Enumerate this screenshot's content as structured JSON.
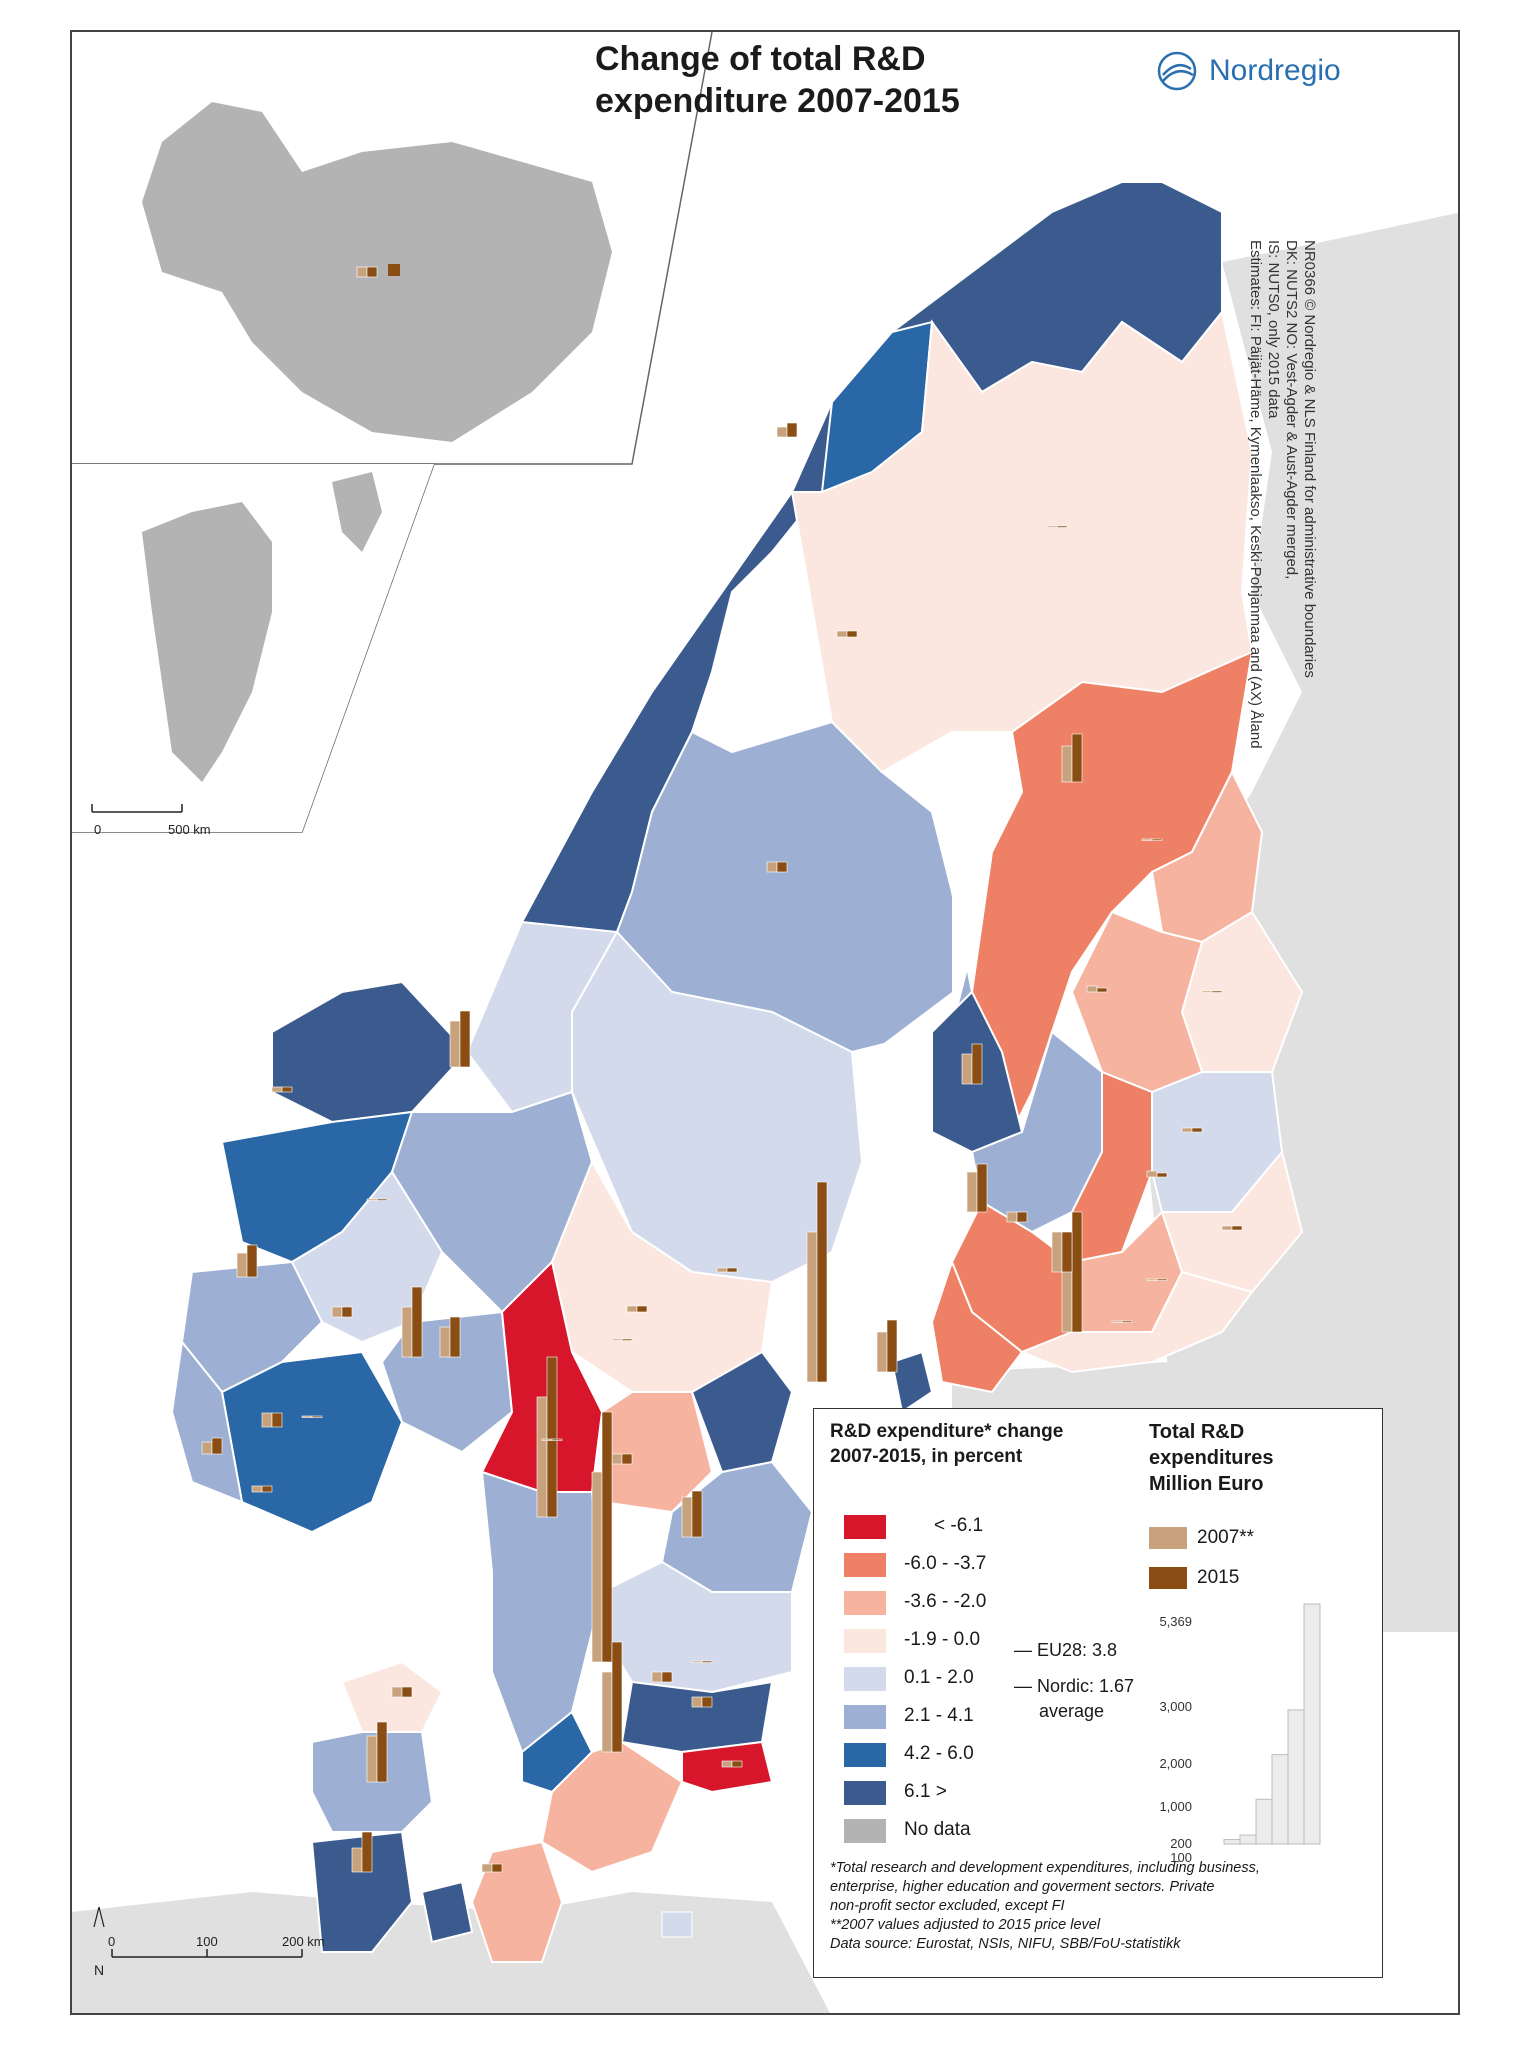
{
  "title": {
    "line1": "Change of total R&D",
    "line2": "expenditure 2007-2015"
  },
  "brand": {
    "name": "Nordregio"
  },
  "credits": [
    "NR0366    © Nordregio & NLS Finland for administrative boundaries",
    "DK: NUTS2  NO: Vest-Agder & Aust-Agder merged,",
    "IS: NUTS0, only 2015 data",
    "Estimates: FI: Päijät-Häme, Kymenlaakso, Keski-Pohjanmaa and (AX) Åland"
  ],
  "colors": {
    "c1": "#d7152b",
    "c2": "#ee8066",
    "c3": "#f6b4a0",
    "c4": "#fbe7e0",
    "c5": "#d2daeb",
    "c6": "#9db0d3",
    "c7": "#2a67a6",
    "c8": "#3b5a8d",
    "nodata": "#b3b3b3",
    "bar2007": "#c7a27c",
    "bar2015": "#8a4e14",
    "background": "#e0e0e0"
  },
  "legend": {
    "heading": [
      "R&D expenditure* change",
      "2007-2015, in percent"
    ],
    "classes": [
      {
        "label": "< -6.1",
        "color": "#d7152b"
      },
      {
        "label": "-6.0 - -3.7",
        "color": "#ee8066"
      },
      {
        "label": "-3.6 - -2.0",
        "color": "#f6b4a0"
      },
      {
        "label": "-1.9 - 0.0",
        "color": "#fbe7e0"
      },
      {
        "label": "0.1 - 2.0",
        "color": "#d2daeb"
      },
      {
        "label": "2.1 - 4.1",
        "color": "#9db0d3"
      },
      {
        "label": "4.2 - 6.0",
        "color": "#2a67a6"
      },
      {
        "label": "6.1 >",
        "color": "#3b5a8d"
      },
      {
        "label": "No data",
        "color": "#b3b3b3"
      }
    ],
    "averages": {
      "eu28": "EU28: 3.8",
      "nordic": "Nordic: 1.67",
      "word": "average"
    },
    "bars_heading": [
      "Total R&D",
      "expenditures",
      "Million Euro"
    ],
    "bars": [
      {
        "label": "2007**",
        "color": "#c7a27c"
      },
      {
        "label": "2015",
        "color": "#8a4e14"
      }
    ],
    "scale_values": [
      "5,369",
      "3,000",
      "2,000",
      "1,000",
      "200",
      "100"
    ],
    "footnotes": [
      "*Total research and development expenditures, including business,",
      "enterprise, higher education and goverment sectors. Private",
      "non-profit sector excluded, except FI",
      "**2007 values adjusted to 2015 price level",
      "Data source: Eurostat, NSIs, NIFU, SBB/FoU-statistikk"
    ]
  },
  "scalebar_main": {
    "labels": [
      "0",
      "100",
      "200 km"
    ],
    "north": "N"
  },
  "scalebar_inset": {
    "labels": [
      "0",
      "500 km"
    ]
  }
}
